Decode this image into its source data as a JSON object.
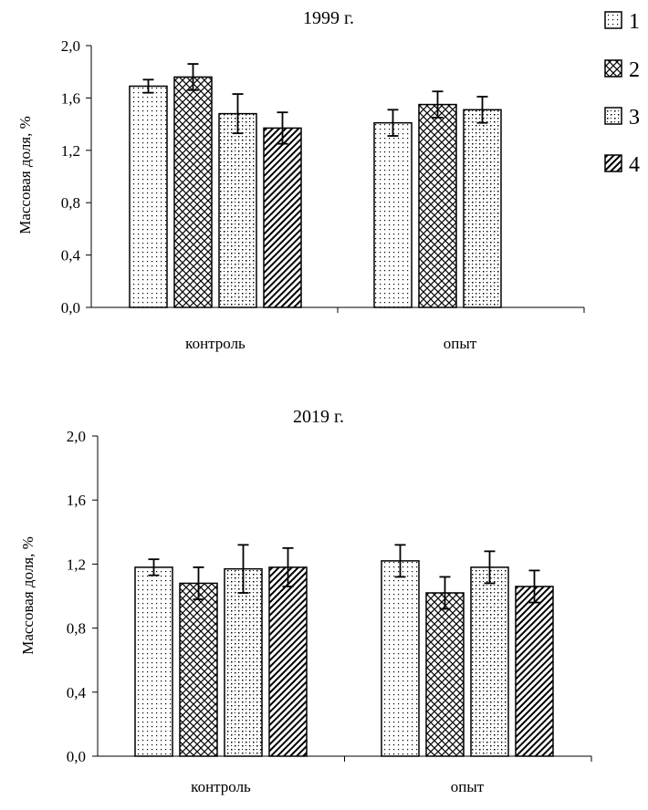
{
  "chart_data": [
    {
      "type": "bar",
      "title": "1999 г.",
      "xlabel": "",
      "ylabel": "Массовая доля, %",
      "ylim": [
        0,
        2.0
      ],
      "yticks": [
        "0,0",
        "0,4",
        "0,8",
        "1,2",
        "1,6",
        "2,0"
      ],
      "categories": [
        "контроль",
        "опыт"
      ],
      "series": [
        {
          "name": "1",
          "values": [
            1.69,
            1.41
          ],
          "errors": [
            0.05,
            0.1
          ]
        },
        {
          "name": "2",
          "values": [
            1.76,
            1.55
          ],
          "errors": [
            0.1,
            0.1
          ]
        },
        {
          "name": "3",
          "values": [
            1.48,
            1.51
          ],
          "errors": [
            0.15,
            0.1
          ]
        },
        {
          "name": "4",
          "values": [
            1.37,
            null
          ],
          "errors": [
            0.12,
            null
          ]
        }
      ],
      "legend_position": "top-right",
      "grid": false
    },
    {
      "type": "bar",
      "title": "2019 г.",
      "xlabel": "",
      "ylabel": "Массовая доля, %",
      "ylim": [
        0,
        2.0
      ],
      "yticks": [
        "0,0",
        "0,4",
        "0,8",
        "1,2",
        "1,6",
        "2,0"
      ],
      "categories": [
        "контроль",
        "опыт"
      ],
      "series": [
        {
          "name": "1",
          "values": [
            1.18,
            1.22
          ],
          "errors": [
            0.05,
            0.1
          ]
        },
        {
          "name": "2",
          "values": [
            1.08,
            1.02
          ],
          "errors": [
            0.1,
            0.1
          ]
        },
        {
          "name": "3",
          "values": [
            1.17,
            1.18
          ],
          "errors": [
            0.15,
            0.1
          ]
        },
        {
          "name": "4",
          "values": [
            1.18,
            1.06
          ],
          "errors": [
            0.12,
            0.1
          ]
        }
      ],
      "grid": false
    }
  ],
  "legend": {
    "items": [
      {
        "label": "1",
        "pattern": "dots"
      },
      {
        "label": "2",
        "pattern": "crosshatch"
      },
      {
        "label": "3",
        "pattern": "diamond-dots"
      },
      {
        "label": "4",
        "pattern": "diagonal"
      }
    ]
  }
}
